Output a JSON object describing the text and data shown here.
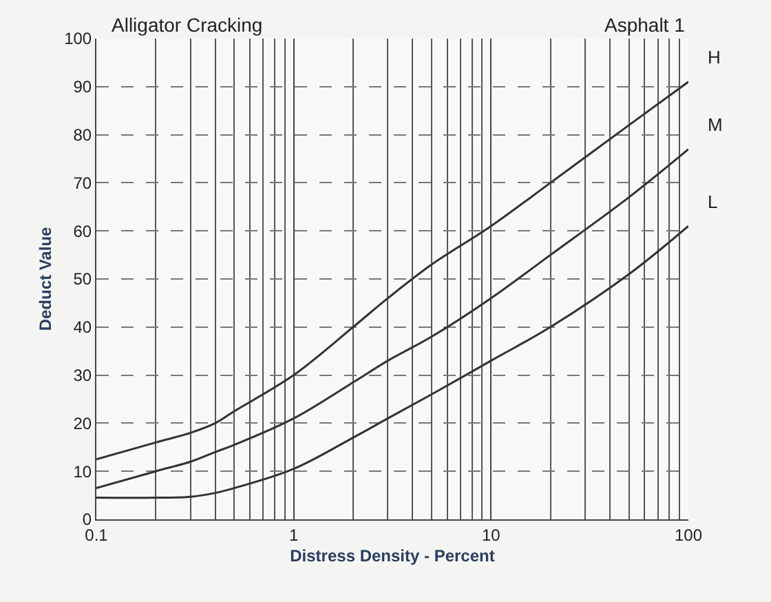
{
  "chart_data": {
    "type": "line",
    "title": "Alligator Cracking",
    "subtitle": "Asphalt 1",
    "xlabel": "Distress Density - Percent",
    "ylabel": "Deduct Value",
    "x": [
      0.1,
      0.2,
      0.3,
      0.4,
      0.5,
      1,
      2,
      3,
      5,
      10,
      20,
      50,
      100
    ],
    "series": [
      {
        "name": "H",
        "color": "#333333",
        "values": [
          12.5,
          16,
          18,
          20,
          22.5,
          30,
          40,
          46,
          53,
          61,
          70,
          82,
          91
        ]
      },
      {
        "name": "M",
        "color": "#333333",
        "values": [
          6.5,
          10,
          12,
          14,
          15.5,
          21,
          28.5,
          33,
          38,
          46,
          55,
          67,
          77
        ]
      },
      {
        "name": "L",
        "color": "#333333",
        "values": [
          4.5,
          4.5,
          4.7,
          5.5,
          6.5,
          10.5,
          17,
          21,
          26,
          33,
          40,
          51,
          61
        ]
      }
    ],
    "log": "x",
    "xlim": [
      0.1,
      100
    ],
    "xticks": [
      0.1,
      1,
      10,
      100
    ],
    "ylim": [
      0,
      100
    ],
    "yticks": [
      0,
      10,
      20,
      30,
      40,
      50,
      60,
      70,
      80,
      90,
      100
    ],
    "grid": true,
    "legend": false,
    "marker": "none",
    "line_style": "solid"
  }
}
